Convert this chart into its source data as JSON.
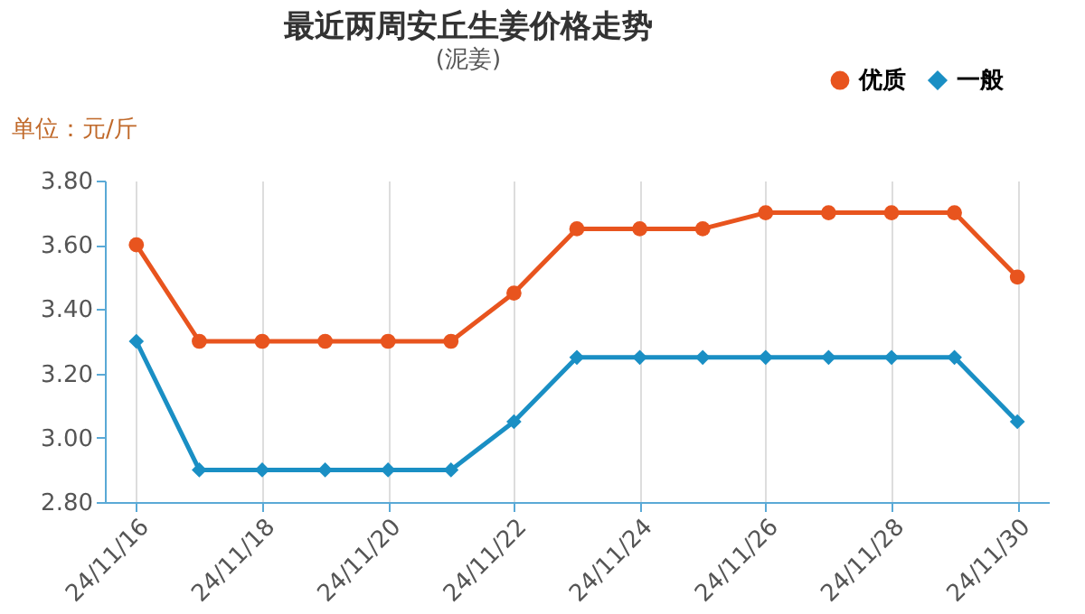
{
  "chart_data": {
    "type": "line",
    "title": "最近两周安丘生姜价格走势",
    "subtitle": "(泥姜)",
    "ylabel": "单位：元/斤",
    "categories": [
      "24/11/16",
      null,
      "24/11/18",
      null,
      "24/11/20",
      null,
      "24/11/22",
      null,
      "24/11/24",
      null,
      "24/11/26",
      null,
      "24/11/28",
      null,
      "24/11/30"
    ],
    "series": [
      {
        "name": "优质",
        "color": "#e8541e",
        "marker": "circle",
        "values": [
          3.6,
          3.3,
          3.3,
          3.3,
          3.3,
          3.3,
          3.45,
          3.65,
          3.65,
          3.65,
          3.7,
          3.7,
          3.7,
          3.7,
          3.5
        ]
      },
      {
        "name": "一般",
        "color": "#1a8fc4",
        "marker": "diamond",
        "values": [
          3.3,
          2.9,
          2.9,
          2.9,
          2.9,
          2.9,
          3.05,
          3.25,
          3.25,
          3.25,
          3.25,
          3.25,
          3.25,
          3.25,
          3.05
        ]
      }
    ],
    "ylim": [
      2.8,
      3.8
    ],
    "yticks": [
      {
        "value": 2.8,
        "label": "2.80"
      },
      {
        "value": 3.0,
        "label": "3.00"
      },
      {
        "value": 3.2,
        "label": "3.20"
      },
      {
        "value": 3.4,
        "label": "3.40"
      },
      {
        "value": 3.6,
        "label": "3.60"
      },
      {
        "value": 3.8,
        "label": "3.80"
      }
    ],
    "grid": "x",
    "legend": "top right"
  }
}
